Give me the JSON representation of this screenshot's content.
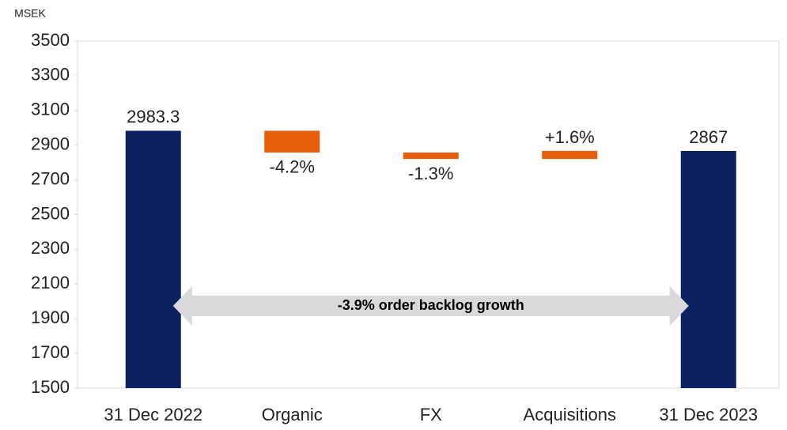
{
  "chart_data": {
    "type": "waterfall",
    "y_axis_label": "MSEK",
    "categories": [
      "31 Dec 2022",
      "Organic",
      "FX",
      "Acquisitions",
      "31 Dec 2023"
    ],
    "values": [
      2983.3,
      -125.3,
      -37.2,
      46.2,
      2867
    ],
    "value_labels": [
      "2983.3",
      "-4.2%",
      "-1.3%",
      "+1.6%",
      "2867"
    ],
    "total_color": "#0b2160",
    "change_color": "#e85d0c",
    "ylim": [
      1500,
      3500
    ],
    "yticks": [
      1500,
      1700,
      1900,
      2100,
      2300,
      2500,
      2700,
      2900,
      3100,
      3300,
      3500
    ],
    "grid": false,
    "annotation": "-3.9% order backlog growth"
  }
}
